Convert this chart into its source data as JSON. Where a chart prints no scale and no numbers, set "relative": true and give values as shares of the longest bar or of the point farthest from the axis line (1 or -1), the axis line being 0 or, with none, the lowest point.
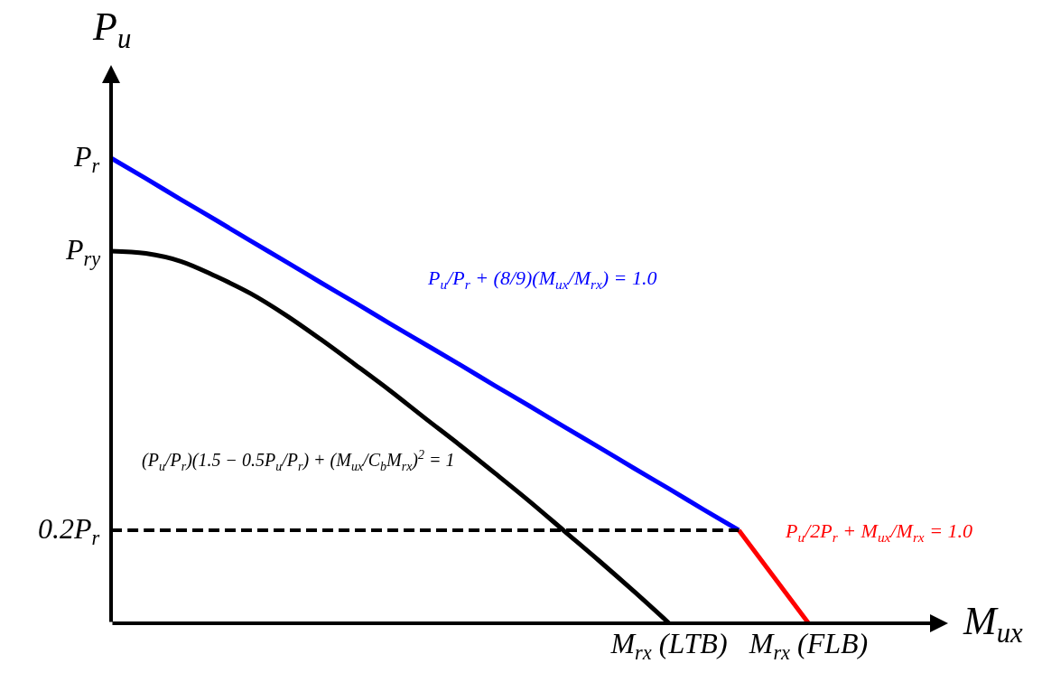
{
  "chart_data": {
    "type": "line",
    "relative": true,
    "xlabel": "M$_{ux}$",
    "ylabel": "P$_{u}$",
    "categories": [
      null,
      null,
      null,
      null,
      null,
      null,
      null,
      null,
      null,
      null,
      null,
      null,
      null,
      null,
      null,
      null,
      "M$_{rx}$ (LTB)",
      null,
      null,
      null,
      "M$_{rx}$ (FLB)"
    ],
    "series": [
      {
        "name": "P$_{u}$/P$_{r}$ + (8/9)(M$_{ux}$/M$_{rx}$) = 1.0",
        "color": "#0000ff",
        "values": [
          1,
          0.956,
          0.911,
          0.867,
          0.822,
          0.778,
          0.733,
          0.689,
          0.644,
          0.6,
          0.556,
          0.511,
          0.467,
          0.422,
          0.378,
          0.333,
          0.289,
          0.244,
          0.2,
          null,
          null
        ]
      },
      {
        "name": "P$_{u}$/2P$_{r}$ + M$_{ux}$/M$_{rx}$ = 1.0",
        "color": "#ff0000",
        "values": [
          null,
          null,
          null,
          null,
          null,
          null,
          null,
          null,
          null,
          null,
          null,
          null,
          null,
          null,
          null,
          null,
          null,
          null,
          0.2,
          0.1,
          0
        ]
      },
      {
        "name": "(P$_{u}$/P$_{r}$)(1.5 − 0.5P$_{u}$/P$_{r}$) + (M$_{ux}$/C$_{b}$M$_{rx}$)$^{2}$ = 1",
        "color": "#000000",
        "values": [
          0.8,
          0.795,
          0.778,
          0.746,
          0.709,
          0.663,
          0.611,
          0.556,
          0.5,
          0.441,
          0.383,
          0.323,
          0.262,
          0.198,
          0.134,
          0.068,
          0,
          null,
          null,
          null,
          null
        ]
      },
      {
        "color": "#000000",
        "line_style": "dashed",
        "values": [
          0.2,
          0.2,
          0.2,
          0.2,
          0.2,
          0.2,
          0.2,
          0.2,
          0.2,
          0.2,
          0.2,
          0.2,
          0.2,
          0.2,
          0.2,
          0.2,
          0.2,
          0.2,
          0.2,
          null,
          null
        ]
      }
    ],
    "annotations": [
      "P$_{r}$",
      "P$_{ry}$",
      "0.2P$_{r}$"
    ]
  }
}
